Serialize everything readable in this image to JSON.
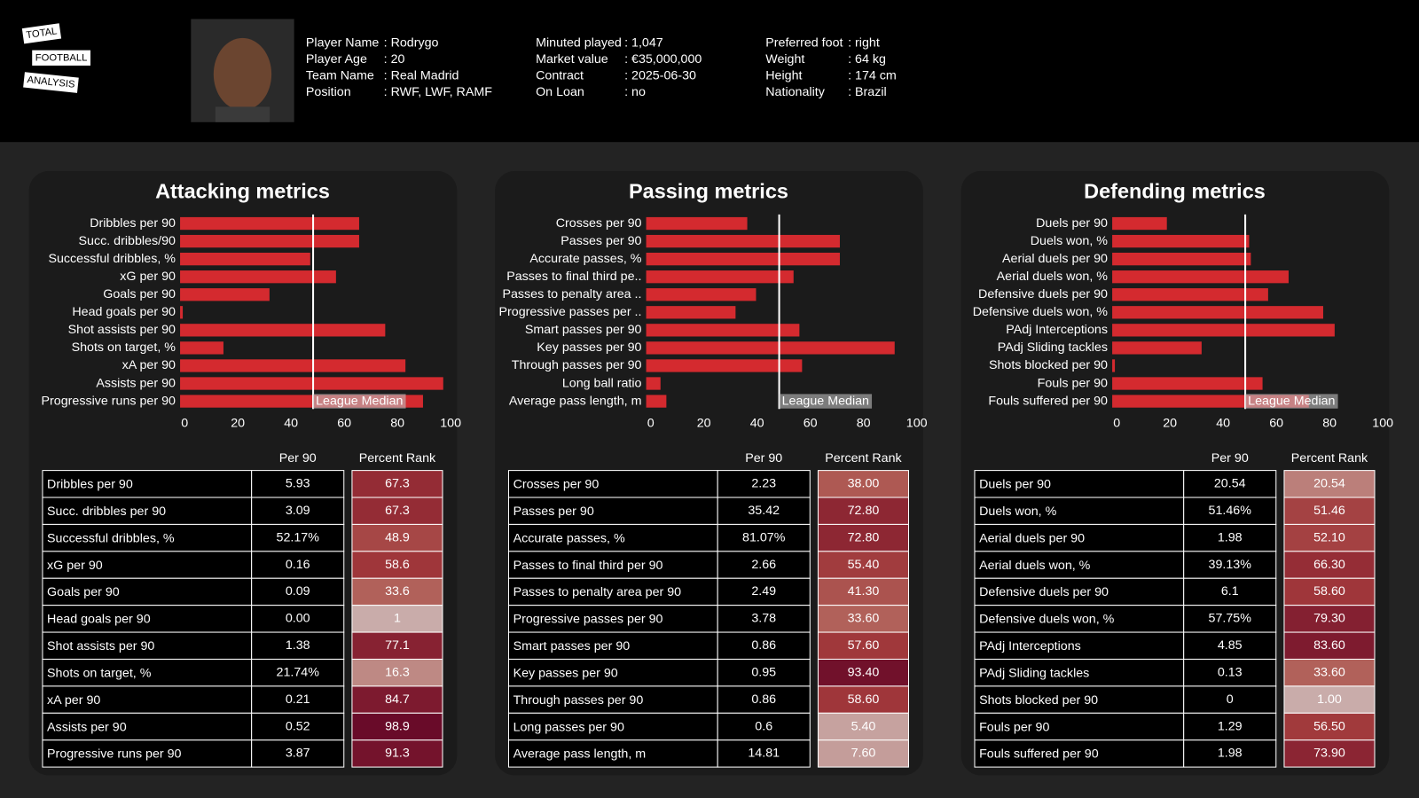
{
  "header": {
    "logo": [
      "TOTAL",
      "FOOTBALL",
      "ANALYSIS"
    ],
    "info": [
      [
        {
          "label": "Player Name",
          "value": ": Rodrygo"
        },
        {
          "label": "Player Age",
          "value": ": 20"
        },
        {
          "label": "Team Name",
          "value": ": Real Madrid"
        },
        {
          "label": "Position",
          "value": ": RWF, LWF, RAMF"
        }
      ],
      [
        {
          "label": "Minuted played",
          "value": ": 1,047"
        },
        {
          "label": "Market value",
          "value": ": €35,000,000"
        },
        {
          "label": "Contract",
          "value": ": 2025-06-30"
        },
        {
          "label": "On Loan",
          "value": ": no"
        }
      ],
      [
        {
          "label": "Preferred foot",
          "value": ": right"
        },
        {
          "label": "Weight",
          "value": ": 64 kg"
        },
        {
          "label": "Height",
          "value": ": 174 cm"
        },
        {
          "label": "Nationality",
          "value": ": Brazil"
        }
      ]
    ]
  },
  "chart_data": [
    {
      "type": "bar",
      "title": "Attacking metrics",
      "color": "#d42a2f",
      "categories": [
        "Dribbles per 90",
        "Succ. dribbles/90",
        "Successful dribbles, %",
        "xG per 90",
        "Goals per 90",
        "Head goals per 90",
        "Shot assists per 90",
        "Shots on target, %",
        "xA per 90",
        "Assists per 90",
        "Progressive runs per 90"
      ],
      "values": [
        67.3,
        67.3,
        48.9,
        58.6,
        33.6,
        1,
        77.1,
        16.3,
        84.7,
        98.9,
        91.3
      ],
      "xlim": [
        0,
        100
      ],
      "xticks": [
        0,
        20,
        40,
        60,
        80,
        100
      ],
      "median": {
        "value": 50,
        "label": "League Median"
      }
    },
    {
      "type": "bar",
      "title": "Passing metrics",
      "color": "#d42a2f",
      "categories": [
        "Crosses per 90",
        "Passes per 90",
        "Accurate passes, %",
        "Passes to final third pe..",
        "Passes to penalty area ..",
        "Progressive passes per ..",
        "Smart passes per 90",
        "Key passes per 90",
        "Through passes per 90",
        "Long ball ratio",
        "Average pass length, m"
      ],
      "values": [
        38,
        72.8,
        72.8,
        55.4,
        41.3,
        33.6,
        57.6,
        93.4,
        58.6,
        5.4,
        7.6
      ],
      "xlim": [
        0,
        100
      ],
      "xticks": [
        0,
        20,
        40,
        60,
        80,
        100
      ],
      "median": {
        "value": 50,
        "label": "League Median"
      }
    },
    {
      "type": "bar",
      "title": "Defending metrics",
      "color": "#d42a2f",
      "categories": [
        "Duels per 90",
        "Duels won, %",
        "Aerial duels per 90",
        "Aerial duels won, %",
        "Defensive duels per 90",
        "Defensive duels won, %",
        "PAdj Interceptions",
        "PAdj Sliding tackles",
        "Shots blocked per 90",
        "Fouls per 90",
        "Fouls suffered per 90"
      ],
      "values": [
        20.54,
        51.46,
        52.1,
        66.3,
        58.6,
        79.3,
        83.6,
        33.6,
        1,
        56.5,
        73.9
      ],
      "xlim": [
        0,
        100
      ],
      "xticks": [
        0,
        20,
        40,
        60,
        80,
        100
      ],
      "median": {
        "value": 50,
        "label": "League Median"
      }
    }
  ],
  "tables": [
    {
      "columns": [
        "Per 90",
        "Percent Rank"
      ],
      "rows": [
        [
          "Dribbles per 90",
          "5.93",
          "67.3"
        ],
        [
          "Succ. dribbles per 90",
          "3.09",
          "67.3"
        ],
        [
          "Successful dribbles, %",
          "52.17%",
          "48.9"
        ],
        [
          "xG per 90",
          "0.16",
          "58.6"
        ],
        [
          "Goals per 90",
          "0.09",
          "33.6"
        ],
        [
          "Head goals per 90",
          "0.00",
          "1"
        ],
        [
          "Shot assists per 90",
          "1.38",
          "77.1"
        ],
        [
          "Shots on target, %",
          "21.74%",
          "16.3"
        ],
        [
          "xA per 90",
          "0.21",
          "84.7"
        ],
        [
          "Assists per 90",
          "0.52",
          "98.9"
        ],
        [
          "Progressive runs per 90",
          "3.87",
          "91.3"
        ]
      ]
    },
    {
      "columns": [
        "Per 90",
        "Percent Rank"
      ],
      "rows": [
        [
          "Crosses per 90",
          "2.23",
          "38.00"
        ],
        [
          "Passes per 90",
          "35.42",
          "72.80"
        ],
        [
          "Accurate passes, %",
          "81.07%",
          "72.80"
        ],
        [
          "Passes to final third per 90",
          "2.66",
          "55.40"
        ],
        [
          "Passes to penalty area per 90",
          "2.49",
          "41.30"
        ],
        [
          "Progressive passes per 90",
          "3.78",
          "33.60"
        ],
        [
          "Smart passes per 90",
          "0.86",
          "57.60"
        ],
        [
          "Key passes per 90",
          "0.95",
          "93.40"
        ],
        [
          "Through passes per 90",
          "0.86",
          "58.60"
        ],
        [
          "Long passes per 90",
          "0.6",
          "5.40"
        ],
        [
          "Average pass length, m",
          "14.81",
          "7.60"
        ]
      ]
    },
    {
      "columns": [
        "Per 90",
        "Percent Rank"
      ],
      "rows": [
        [
          "Duels per 90",
          "20.54",
          "20.54"
        ],
        [
          "Duels won, %",
          "51.46%",
          "51.46"
        ],
        [
          "Aerial duels per 90",
          "1.98",
          "52.10"
        ],
        [
          "Aerial duels won, %",
          "39.13%",
          "66.30"
        ],
        [
          "Defensive duels per 90",
          "6.1",
          "58.60"
        ],
        [
          "Defensive duels won, %",
          "57.75%",
          "79.30"
        ],
        [
          "PAdj Interceptions",
          "4.85",
          "83.60"
        ],
        [
          "PAdj Sliding tackles",
          "0.13",
          "33.60"
        ],
        [
          "Shots blocked per 90",
          "0",
          "1.00"
        ],
        [
          "Fouls per 90",
          "1.29",
          "56.50"
        ],
        [
          "Fouls suffered per 90",
          "1.98",
          "73.90"
        ]
      ]
    }
  ]
}
